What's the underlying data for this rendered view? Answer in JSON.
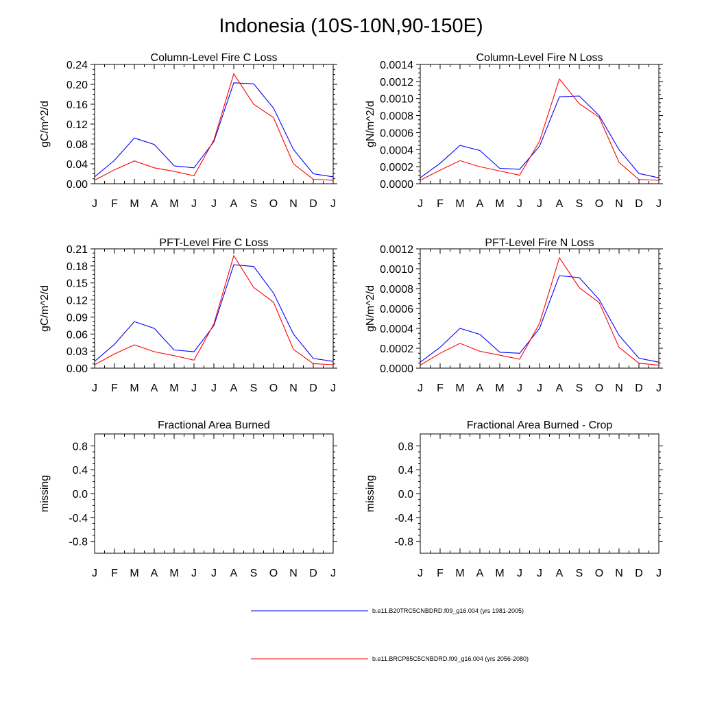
{
  "figure_title": "Indonesia (10S-10N,90-150E)",
  "months": [
    "J",
    "F",
    "M",
    "A",
    "M",
    "J",
    "J",
    "A",
    "S",
    "O",
    "N",
    "D",
    "J"
  ],
  "colors": {
    "series1": "#0000ff",
    "series2": "#ff0000",
    "axis": "#000000"
  },
  "legend": [
    {
      "label": "b.e11.B20TRC5CNBDRD.f09_g16.004 (yrs 1981-2005)",
      "color": "#0000ff"
    },
    {
      "label": "b.e11.BRCP85C5CNBDRD.f09_g16.004 (yrs 2056-2080)",
      "color": "#ff0000"
    }
  ],
  "chart_data": [
    {
      "type": "line",
      "title": "Column-Level Fire C Loss",
      "ylabel": "gC/m^2/d",
      "ylim": [
        0,
        0.24
      ],
      "yticks": [
        "0.00",
        "0.04",
        "0.08",
        "0.12",
        "0.16",
        "0.20",
        "0.24"
      ],
      "x": [
        "J",
        "F",
        "M",
        "A",
        "M",
        "J",
        "J",
        "A",
        "S",
        "O",
        "N",
        "D",
        "J"
      ],
      "series": [
        {
          "name": "b.e11.B20TRC5CNBDRD.f09_g16.004 (yrs 1981-2005)",
          "color": "#0000ff",
          "values": [
            0.014,
            0.047,
            0.092,
            0.079,
            0.036,
            0.032,
            0.085,
            0.203,
            0.201,
            0.152,
            0.069,
            0.02,
            0.014
          ]
        },
        {
          "name": "b.e11.BRCP85C5CNBDRD.f09_g16.004 (yrs 2056-2080)",
          "color": "#ff0000",
          "values": [
            0.007,
            0.028,
            0.046,
            0.032,
            0.025,
            0.016,
            0.088,
            0.221,
            0.16,
            0.133,
            0.04,
            0.009,
            0.007
          ]
        }
      ]
    },
    {
      "type": "line",
      "title": "Column-Level Fire N Loss",
      "ylabel": "gN/m^2/d",
      "ylim": [
        0,
        0.0014
      ],
      "yticks": [
        "0.0000",
        "0.0002",
        "0.0004",
        "0.0006",
        "0.0008",
        "0.0010",
        "0.0012",
        "0.0014"
      ],
      "x": [
        "J",
        "F",
        "M",
        "A",
        "M",
        "J",
        "J",
        "A",
        "S",
        "O",
        "N",
        "D",
        "J"
      ],
      "series": [
        {
          "name": "b.e11.B20TRC5CNBDRD.f09_g16.004 (yrs 1981-2005)",
          "color": "#0000ff",
          "values": [
            7e-05,
            0.00024,
            0.00045,
            0.00039,
            0.00018,
            0.00017,
            0.00044,
            0.00102,
            0.00103,
            0.0008,
            0.0004,
            0.00012,
            7e-05
          ]
        },
        {
          "name": "b.e11.BRCP85C5CNBDRD.f09_g16.004 (yrs 2056-2080)",
          "color": "#ff0000",
          "values": [
            4e-05,
            0.00016,
            0.00027,
            0.0002,
            0.00015,
            0.0001,
            0.0005,
            0.00123,
            0.00094,
            0.00078,
            0.00025,
            5e-05,
            4e-05
          ]
        }
      ]
    },
    {
      "type": "line",
      "title": "PFT-Level Fire C Loss",
      "ylabel": "gC/m^2/d",
      "ylim": [
        0,
        0.21
      ],
      "yticks": [
        "0.00",
        "0.03",
        "0.06",
        "0.09",
        "0.12",
        "0.15",
        "0.18",
        "0.21"
      ],
      "x": [
        "J",
        "F",
        "M",
        "A",
        "M",
        "J",
        "J",
        "A",
        "S",
        "O",
        "N",
        "D",
        "J"
      ],
      "series": [
        {
          "name": "b.e11.B20TRC5CNBDRD.f09_g16.004 (yrs 1981-2005)",
          "color": "#0000ff",
          "values": [
            0.012,
            0.042,
            0.082,
            0.07,
            0.032,
            0.029,
            0.075,
            0.182,
            0.179,
            0.132,
            0.06,
            0.017,
            0.012
          ]
        },
        {
          "name": "b.e11.BRCP85C5CNBDRD.f09_g16.004 (yrs 2056-2080)",
          "color": "#ff0000",
          "values": [
            0.006,
            0.025,
            0.041,
            0.029,
            0.022,
            0.014,
            0.078,
            0.198,
            0.142,
            0.116,
            0.033,
            0.008,
            0.006
          ]
        }
      ]
    },
    {
      "type": "line",
      "title": "PFT-Level Fire N Loss",
      "ylabel": "gN/m^2/d",
      "ylim": [
        0,
        0.0012
      ],
      "yticks": [
        "0.0000",
        "0.0002",
        "0.0004",
        "0.0006",
        "0.0008",
        "0.0010",
        "0.0012"
      ],
      "x": [
        "J",
        "F",
        "M",
        "A",
        "M",
        "J",
        "J",
        "A",
        "S",
        "O",
        "N",
        "D",
        "J"
      ],
      "series": [
        {
          "name": "b.e11.B20TRC5CNBDRD.f09_g16.004 (yrs 1981-2005)",
          "color": "#0000ff",
          "values": [
            6e-05,
            0.00021,
            0.0004,
            0.00034,
            0.00016,
            0.00015,
            0.0004,
            0.00093,
            0.00091,
            0.00069,
            0.00033,
            0.0001,
            6e-05
          ]
        },
        {
          "name": "b.e11.BRCP85C5CNBDRD.f09_g16.004 (yrs 2056-2080)",
          "color": "#ff0000",
          "values": [
            3e-05,
            0.00015,
            0.00025,
            0.00017,
            0.00013,
            9e-05,
            0.00045,
            0.00111,
            0.00081,
            0.00066,
            0.00021,
            5e-05,
            3e-05
          ]
        }
      ]
    },
    {
      "type": "line",
      "title": "Fractional Area Burned",
      "ylabel": "missing",
      "ylim": [
        -1.0,
        1.0
      ],
      "yticks": [
        "-0.8",
        "-0.4",
        "0.0",
        "0.4",
        "0.8"
      ],
      "x": [
        "J",
        "F",
        "M",
        "A",
        "M",
        "J",
        "J",
        "A",
        "S",
        "O",
        "N",
        "D",
        "J"
      ],
      "series": []
    },
    {
      "type": "line",
      "title": "Fractional Area Burned - Crop",
      "ylabel": "missing",
      "ylim": [
        -1.0,
        1.0
      ],
      "yticks": [
        "-0.8",
        "-0.4",
        "0.0",
        "0.4",
        "0.8"
      ],
      "x": [
        "J",
        "F",
        "M",
        "A",
        "M",
        "J",
        "J",
        "A",
        "S",
        "O",
        "N",
        "D",
        "J"
      ],
      "series": []
    }
  ]
}
